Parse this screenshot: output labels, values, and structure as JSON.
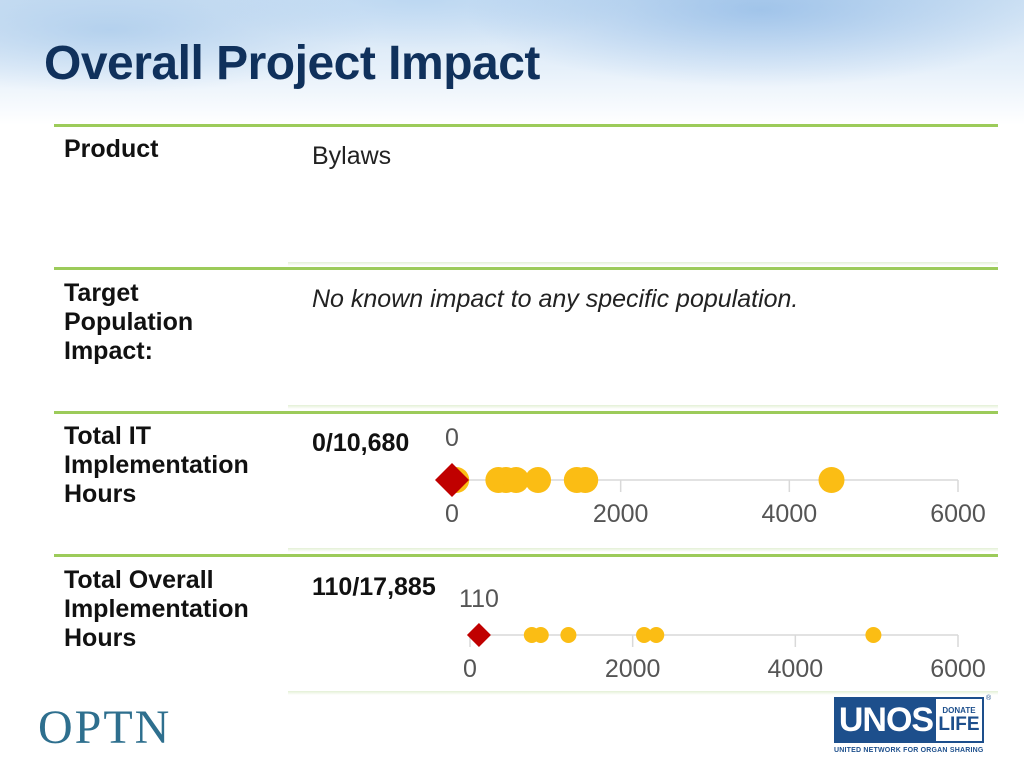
{
  "slide": {
    "title": "Overall Project Impact"
  },
  "rows": [
    {
      "label": "Product",
      "value": "Bylaws"
    },
    {
      "label": "Target\nPopulation\nImpact:",
      "value": "No known impact to any specific population."
    },
    {
      "label": "Total IT\nImplementation\nHours",
      "value": "0/10,680"
    },
    {
      "label": "Total Overall\nImplementation\nHours",
      "value": "110/17,885"
    }
  ],
  "chart_data": [
    {
      "type": "scatter",
      "title": "Total IT Implementation Hours",
      "annotation": "0",
      "highlight": {
        "x": 0,
        "label": "0",
        "color": "#c00000",
        "marker": "diamond"
      },
      "x": [
        50,
        550,
        640,
        760,
        1020,
        1480,
        1580,
        4500
      ],
      "color": "#fbbd14",
      "xlim": [
        0,
        6000
      ],
      "xticks": [
        "0",
        "2000",
        "4000",
        "6000"
      ]
    },
    {
      "type": "scatter",
      "title": "Total Overall Implementation Hours",
      "annotation": "110",
      "highlight": {
        "x": 110,
        "label": "110",
        "color": "#c00000",
        "marker": "diamond"
      },
      "x": [
        760,
        870,
        1210,
        2140,
        2290,
        4960
      ],
      "color": "#fbbd14",
      "xlim": [
        0,
        6000
      ],
      "xticks": [
        "0",
        "2000",
        "4000",
        "6000"
      ]
    }
  ],
  "branding": {
    "optn": "OPTN",
    "unos_main": "UNOS",
    "donate": "DONATE",
    "life": "LIFE",
    "unos_sub": "UNITED NETWORK FOR ORGAN SHARING",
    "registered": "®"
  },
  "colors": {
    "title": "#10315c",
    "rule": "#9ccb5a",
    "dot": "#fbbd14",
    "highlight": "#c00000"
  }
}
